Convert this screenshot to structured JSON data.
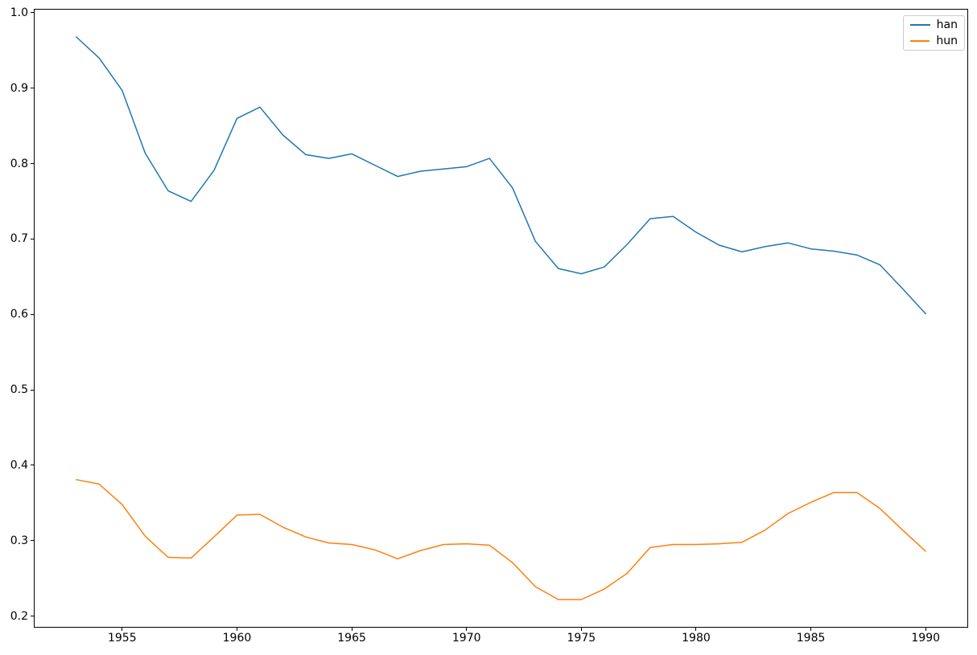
{
  "chart_data": {
    "type": "line",
    "title": "",
    "xlabel": "",
    "ylabel": "",
    "grid": false,
    "legend_position": "upper right",
    "xlim": [
      1951.15,
      1991.85
    ],
    "ylim": [
      0.1847,
      1.0053
    ],
    "xticks": [
      1955,
      1960,
      1965,
      1970,
      1975,
      1980,
      1985,
      1990
    ],
    "yticks": [
      0.2,
      0.3,
      0.4,
      0.5,
      0.6,
      0.7,
      0.8,
      0.9,
      1.0
    ],
    "x": [
      1953,
      1954,
      1955,
      1956,
      1957,
      1958,
      1959,
      1960,
      1961,
      1962,
      1963,
      1964,
      1965,
      1966,
      1967,
      1968,
      1969,
      1970,
      1971,
      1972,
      1973,
      1974,
      1975,
      1976,
      1977,
      1978,
      1979,
      1980,
      1981,
      1982,
      1983,
      1984,
      1985,
      1986,
      1987,
      1988,
      1989,
      1990
    ],
    "series": [
      {
        "name": "han",
        "color": "#1f77b4",
        "values": [
          0.968,
          0.94,
          0.897,
          0.814,
          0.764,
          0.75,
          0.791,
          0.86,
          0.875,
          0.838,
          0.812,
          0.807,
          0.813,
          0.798,
          0.783,
          0.79,
          0.793,
          0.796,
          0.807,
          0.768,
          0.697,
          0.661,
          0.654,
          0.663,
          0.693,
          0.727,
          0.73,
          0.709,
          0.692,
          0.683,
          0.69,
          0.695,
          0.687,
          0.684,
          0.679,
          0.666,
          0.634,
          0.601
        ]
      },
      {
        "name": "hun",
        "color": "#ff7f0e",
        "values": [
          0.381,
          0.375,
          0.348,
          0.306,
          0.278,
          0.277,
          0.305,
          0.334,
          0.335,
          0.318,
          0.305,
          0.297,
          0.295,
          0.288,
          0.276,
          0.287,
          0.295,
          0.296,
          0.294,
          0.271,
          0.239,
          0.222,
          0.222,
          0.236,
          0.257,
          0.291,
          0.295,
          0.295,
          0.296,
          0.298,
          0.314,
          0.336,
          0.351,
          0.364,
          0.364,
          0.343,
          0.314,
          0.286
        ]
      }
    ]
  }
}
